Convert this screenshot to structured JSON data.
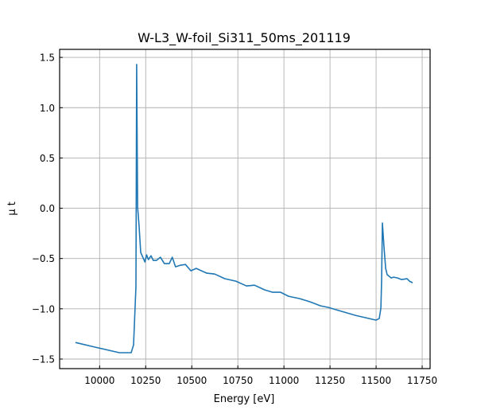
{
  "chart_data": {
    "type": "line",
    "title": "W-L3_W-foil_Si311_50ms_201119",
    "xlabel": "Energy [eV]",
    "ylabel": "μ t",
    "xlim": [
      9783,
      11793
    ],
    "ylim": [
      -1.595,
      1.58
    ],
    "grid": true,
    "xticks": [
      10000,
      10250,
      10500,
      10750,
      11000,
      11250,
      11500,
      11750
    ],
    "xtick_labels": [
      "10000",
      "10250",
      "10500",
      "10750",
      "11000",
      "11250",
      "11500",
      "11750"
    ],
    "yticks": [
      -1.5,
      -1.0,
      -0.5,
      0.0,
      0.5,
      1.0,
      1.5
    ],
    "ytick_labels": [
      "−1.5",
      "−1.0",
      "−0.5",
      "0.0",
      "0.5",
      "1.0",
      "1.5"
    ],
    "series": [
      {
        "name": "mu_t",
        "color": "#1f77b4",
        "x": [
          9869,
          9977,
          10107,
          10171,
          10184,
          10197,
          10201,
          10206,
          10214,
          10223,
          10246,
          10255,
          10265,
          10279,
          10291,
          10308,
          10330,
          10351,
          10378,
          10394,
          10412,
          10437,
          10466,
          10495,
          10524,
          10581,
          10624,
          10680,
          10739,
          10797,
          10840,
          10896,
          10939,
          10982,
          11025,
          11086,
          11142,
          11198,
          11241,
          11284,
          11388,
          11500,
          11517,
          11526,
          11530,
          11534,
          11543,
          11552,
          11560,
          11582,
          11595,
          11616,
          11638,
          11668,
          11681,
          11698
        ],
        "y": [
          -1.335,
          -1.382,
          -1.437,
          -1.437,
          -1.358,
          -0.78,
          1.43,
          0.011,
          -0.171,
          -0.44,
          -0.535,
          -0.464,
          -0.511,
          -0.472,
          -0.519,
          -0.519,
          -0.487,
          -0.551,
          -0.551,
          -0.487,
          -0.582,
          -0.567,
          -0.559,
          -0.622,
          -0.598,
          -0.646,
          -0.654,
          -0.701,
          -0.725,
          -0.773,
          -0.765,
          -0.812,
          -0.836,
          -0.836,
          -0.875,
          -0.899,
          -0.931,
          -0.97,
          -0.986,
          -1.01,
          -1.065,
          -1.113,
          -1.097,
          -0.994,
          -0.725,
          -0.147,
          -0.384,
          -0.598,
          -0.661,
          -0.693,
          -0.685,
          -0.693,
          -0.709,
          -0.701,
          -0.725,
          -0.741
        ]
      }
    ]
  }
}
